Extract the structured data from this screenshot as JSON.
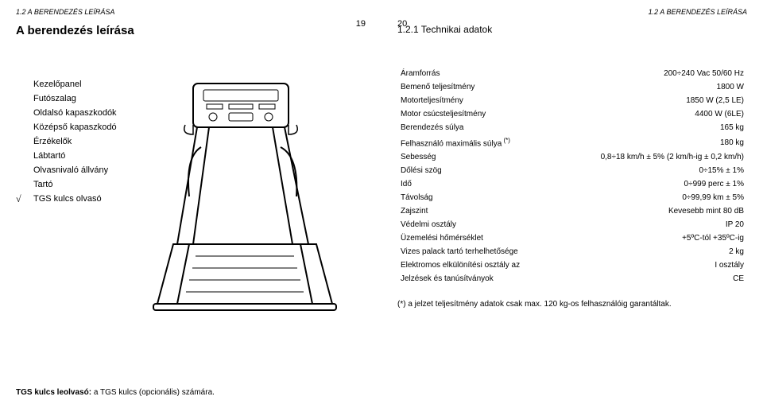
{
  "header_left": "1.2 A BERENDEZÉS LEÍRÁSA",
  "header_right": "1.2 A BERENDEZÉS LEÍRÁSA",
  "page_left_num": "19",
  "page_right_num": "20",
  "section_title": "A berendezés leírása",
  "subsection_title": "1.2.1   Technikai adatok",
  "components": [
    {
      "root": "",
      "label": "Kezelőpanel"
    },
    {
      "root": "",
      "label": "Futószalag"
    },
    {
      "root": "",
      "label": "Oldalsó kapaszkodók"
    },
    {
      "root": "",
      "label": "Középső kapaszkodó"
    },
    {
      "root": "",
      "label": "Érzékelők"
    },
    {
      "root": "",
      "label": "Lábtartó"
    },
    {
      "root": "",
      "label": "Olvasnivaló állvány"
    },
    {
      "root": "",
      "label": "Tartó"
    },
    {
      "root": "√",
      "label": "TGS kulcs olvasó"
    }
  ],
  "specs": [
    {
      "k": "Áramforrás",
      "v": "200÷240 Vac 50/60 Hz"
    },
    {
      "k": "Bemenő teljesítmény",
      "v": "1800 W"
    },
    {
      "k": "Motorteljesítmény",
      "v": "1850 W (2,5 LE)"
    },
    {
      "k": "Motor csúcsteljesítmény",
      "v": "4400 W (6LE)"
    },
    {
      "k": "Berendezés súlya",
      "v": "165 kg"
    },
    {
      "k": "Felhasználó maximális súlya (*)",
      "v": "180 kg"
    },
    {
      "k": "Sebesség",
      "v": "0,8÷18 km/h ± 5% (2 km/h-ig ± 0,2 km/h)"
    },
    {
      "k": "Dőlési szög",
      "v": "0÷15% ± 1%"
    },
    {
      "k": "Idő",
      "v": "0÷999 perc ± 1%"
    },
    {
      "k": "Távolság",
      "v": "0÷99,99 km ± 5%"
    },
    {
      "k": "Zajszint",
      "v": "Kevesebb mint 80 dB"
    },
    {
      "k": "Védelmi osztály",
      "v": "IP 20"
    },
    {
      "k": "Üzemelési hőmérséklet",
      "v": "+5ºC-tól +35ºC-ig"
    },
    {
      "k": "Vizes palack tartó terhelhetősége",
      "v": "2 kg"
    },
    {
      "k": "Elektromos elkülönítési osztály az",
      "v": "I osztály"
    },
    {
      "k": "Jelzések és tanúsítványok",
      "v": "CE"
    }
  ],
  "footnote": "(*)  a jelzet teljesítmény adatok csak max. 120 kg-os felhasználóig garantáltak.",
  "bottom_note_strong": "TGS kulcs leolvasó:",
  "bottom_note_rest": " a TGS kulcs (opcionális) számára."
}
